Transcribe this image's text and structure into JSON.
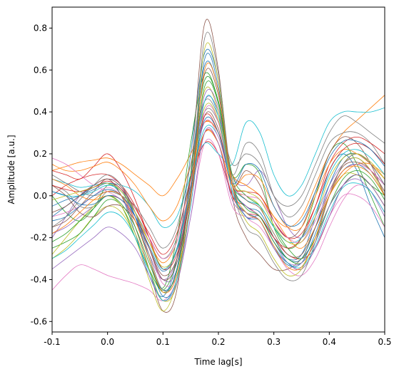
{
  "chart_data": {
    "type": "line",
    "xlabel": "Time lag[s]",
    "ylabel": "Amplitude [a.u.]",
    "xlim": [
      -0.1,
      0.5
    ],
    "ylim": [
      -0.65,
      0.9
    ],
    "x_ticks": [
      -0.1,
      0.0,
      0.1,
      0.2,
      0.3,
      0.4,
      0.5
    ],
    "x_tick_labels": [
      "-0.1",
      "0.0",
      "0.1",
      "0.2",
      "0.3",
      "0.4",
      "0.5"
    ],
    "y_ticks": [
      -0.6,
      -0.4,
      -0.2,
      0.0,
      0.2,
      0.4,
      0.6,
      0.8
    ],
    "y_tick_labels": [
      "-0.6",
      "-0.4",
      "-0.2",
      "0.0",
      "0.2",
      "0.4",
      "0.6",
      "0.8"
    ],
    "grid": false,
    "legend": "none",
    "palette": [
      "#1f77b4",
      "#ff7f0e",
      "#2ca02c",
      "#d62728",
      "#9467bd",
      "#8c564b",
      "#e377c2",
      "#7f7f7f",
      "#bcbd22",
      "#17becf"
    ],
    "approx_series_count": 100,
    "x": [
      -0.1,
      -0.075,
      -0.05,
      -0.025,
      0.0,
      0.025,
      0.05,
      0.075,
      0.1,
      0.125,
      0.15,
      0.175,
      0.2,
      0.225,
      0.25,
      0.275,
      0.3,
      0.325,
      0.35,
      0.375,
      0.4,
      0.425,
      0.45,
      0.475,
      0.5
    ],
    "series": [
      {
        "values": [
          -0.1,
          -0.05,
          0.0,
          0.04,
          0.06,
          0.0,
          -0.18,
          -0.38,
          -0.48,
          -0.3,
          0.2,
          0.68,
          0.55,
          0.05,
          -0.1,
          -0.1,
          -0.22,
          -0.3,
          -0.28,
          -0.1,
          0.12,
          0.2,
          0.12,
          -0.05,
          -0.2
        ]
      },
      {
        "values": [
          0.12,
          0.14,
          0.16,
          0.17,
          0.18,
          0.15,
          0.1,
          0.05,
          0.0,
          0.08,
          0.2,
          0.35,
          0.3,
          0.1,
          0.05,
          0.0,
          -0.1,
          -0.15,
          -0.1,
          0.05,
          0.2,
          0.3,
          0.36,
          0.42,
          0.48
        ]
      },
      {
        "values": [
          0.0,
          -0.08,
          -0.12,
          -0.06,
          0.05,
          0.02,
          -0.1,
          -0.3,
          -0.44,
          -0.2,
          0.25,
          0.58,
          0.45,
          0.1,
          0.15,
          0.1,
          -0.15,
          -0.25,
          -0.2,
          0.0,
          0.2,
          0.25,
          0.15,
          0.0,
          -0.15
        ]
      },
      {
        "values": [
          0.12,
          0.1,
          0.08,
          0.14,
          0.2,
          0.12,
          -0.02,
          -0.2,
          -0.35,
          -0.25,
          0.05,
          0.25,
          0.2,
          0.0,
          -0.05,
          -0.1,
          -0.2,
          -0.28,
          -0.3,
          -0.25,
          -0.1,
          0.05,
          0.1,
          0.05,
          -0.05
        ]
      },
      {
        "values": [
          -0.2,
          -0.1,
          0.0,
          0.05,
          0.08,
          0.05,
          -0.1,
          -0.25,
          -0.4,
          -0.35,
          0.05,
          0.45,
          0.4,
          0.1,
          0.05,
          0.12,
          0.0,
          -0.15,
          -0.2,
          -0.1,
          0.05,
          0.15,
          0.18,
          0.12,
          0.05
        ]
      },
      {
        "values": [
          -0.15,
          -0.12,
          -0.05,
          0.02,
          0.08,
          0.0,
          -0.15,
          -0.35,
          -0.55,
          -0.45,
          0.1,
          0.82,
          0.6,
          0.0,
          -0.2,
          -0.28,
          -0.35,
          -0.35,
          -0.3,
          -0.2,
          0.0,
          0.15,
          0.2,
          0.15,
          0.05
        ]
      },
      {
        "values": [
          -0.45,
          -0.38,
          -0.33,
          -0.35,
          -0.38,
          -0.4,
          -0.42,
          -0.45,
          -0.5,
          -0.4,
          -0.1,
          0.25,
          0.2,
          -0.05,
          -0.1,
          -0.12,
          -0.25,
          -0.32,
          -0.35,
          -0.25,
          -0.1,
          0.0,
          0.0,
          -0.05,
          -0.15
        ]
      },
      {
        "values": [
          0.05,
          0.02,
          -0.05,
          -0.05,
          0.02,
          0.0,
          -0.08,
          -0.2,
          -0.3,
          -0.2,
          0.1,
          0.4,
          0.35,
          0.1,
          0.25,
          0.2,
          0.0,
          -0.1,
          -0.05,
          0.1,
          0.25,
          0.3,
          0.3,
          0.25,
          0.15
        ]
      },
      {
        "values": [
          -0.3,
          -0.25,
          -0.18,
          -0.1,
          -0.05,
          -0.08,
          -0.2,
          -0.4,
          -0.55,
          -0.4,
          0.05,
          0.5,
          0.4,
          0.05,
          0.0,
          -0.05,
          -0.2,
          -0.3,
          -0.3,
          -0.15,
          0.0,
          0.1,
          0.1,
          0.05,
          -0.05
        ]
      },
      {
        "values": [
          0.08,
          0.06,
          0.04,
          0.05,
          0.06,
          0.05,
          0.02,
          -0.05,
          -0.15,
          -0.1,
          0.1,
          0.25,
          0.2,
          0.15,
          0.35,
          0.3,
          0.1,
          0.0,
          0.05,
          0.2,
          0.35,
          0.4,
          0.4,
          0.4,
          0.42
        ]
      },
      {
        "values": [
          -0.05,
          -0.02,
          0.0,
          0.03,
          0.06,
          0.03,
          -0.1,
          -0.3,
          -0.45,
          -0.35,
          0.1,
          0.62,
          0.5,
          0.05,
          -0.05,
          -0.08,
          -0.2,
          -0.3,
          -0.3,
          -0.15,
          0.05,
          0.18,
          0.2,
          0.15,
          0.05
        ]
      },
      {
        "values": [
          0.15,
          0.12,
          0.12,
          0.14,
          0.16,
          0.12,
          0.05,
          -0.05,
          -0.12,
          -0.05,
          0.15,
          0.35,
          0.3,
          0.1,
          0.05,
          0.0,
          -0.1,
          -0.2,
          -0.25,
          -0.15,
          0.0,
          0.1,
          0.15,
          0.15,
          0.1
        ]
      },
      {
        "values": [
          -0.25,
          -0.22,
          -0.18,
          -0.1,
          -0.02,
          -0.05,
          -0.2,
          -0.35,
          -0.45,
          -0.3,
          0.1,
          0.55,
          0.45,
          0.1,
          0.0,
          -0.05,
          -0.15,
          -0.25,
          -0.3,
          -0.2,
          -0.05,
          0.05,
          0.1,
          0.05,
          0.0
        ]
      },
      {
        "values": [
          0.0,
          0.05,
          0.08,
          0.1,
          0.1,
          0.05,
          -0.05,
          -0.2,
          -0.35,
          -0.28,
          0.0,
          0.3,
          0.25,
          0.0,
          -0.08,
          -0.1,
          -0.2,
          -0.25,
          -0.2,
          -0.05,
          0.15,
          0.25,
          0.28,
          0.25,
          0.2
        ]
      },
      {
        "values": [
          -0.18,
          -0.15,
          -0.1,
          -0.05,
          0.0,
          -0.02,
          -0.12,
          -0.28,
          -0.4,
          -0.3,
          0.05,
          0.48,
          0.42,
          0.05,
          -0.05,
          -0.1,
          -0.22,
          -0.32,
          -0.35,
          -0.25,
          -0.1,
          0.05,
          0.1,
          0.05,
          -0.05
        ]
      },
      {
        "values": [
          0.05,
          0.0,
          -0.08,
          -0.1,
          -0.05,
          -0.05,
          -0.12,
          -0.25,
          -0.38,
          -0.3,
          0.0,
          0.38,
          0.32,
          0.05,
          0.12,
          0.05,
          -0.12,
          -0.2,
          -0.15,
          0.02,
          0.2,
          0.28,
          0.25,
          0.15,
          0.0
        ]
      },
      {
        "values": [
          -0.1,
          -0.08,
          -0.05,
          0.0,
          0.04,
          0.0,
          -0.1,
          -0.25,
          -0.42,
          -0.38,
          -0.05,
          0.4,
          0.35,
          0.02,
          -0.1,
          -0.15,
          -0.25,
          -0.35,
          -0.38,
          -0.3,
          -0.15,
          -0.02,
          0.05,
          0.02,
          -0.08
        ]
      },
      {
        "values": [
          0.1,
          0.06,
          0.02,
          0.0,
          0.02,
          0.0,
          -0.05,
          -0.15,
          -0.25,
          -0.15,
          0.15,
          0.45,
          0.38,
          0.15,
          0.2,
          0.15,
          0.0,
          -0.05,
          0.0,
          0.15,
          0.3,
          0.38,
          0.35,
          0.3,
          0.25
        ]
      },
      {
        "values": [
          -0.28,
          -0.2,
          -0.12,
          -0.05,
          0.0,
          -0.05,
          -0.18,
          -0.35,
          -0.5,
          -0.42,
          0.0,
          0.7,
          0.55,
          0.05,
          -0.12,
          -0.18,
          -0.3,
          -0.38,
          -0.35,
          -0.2,
          0.0,
          0.15,
          0.18,
          0.12,
          0.0
        ]
      },
      {
        "values": [
          0.02,
          0.0,
          0.0,
          0.02,
          0.05,
          0.02,
          -0.08,
          -0.22,
          -0.35,
          -0.25,
          0.05,
          0.32,
          0.28,
          0.05,
          -0.02,
          -0.05,
          -0.15,
          -0.22,
          -0.2,
          -0.08,
          0.1,
          0.2,
          0.22,
          0.18,
          0.1
        ]
      },
      {
        "values": [
          -0.12,
          -0.1,
          -0.05,
          0.0,
          0.03,
          0.0,
          -0.1,
          -0.3,
          -0.48,
          -0.4,
          0.0,
          0.65,
          0.52,
          0.05,
          -0.1,
          -0.12,
          -0.25,
          -0.33,
          -0.32,
          -0.18,
          0.0,
          0.12,
          0.15,
          0.1,
          0.0
        ]
      },
      {
        "values": [
          0.08,
          0.05,
          0.0,
          -0.02,
          0.0,
          -0.02,
          -0.1,
          -0.22,
          -0.32,
          -0.22,
          0.05,
          0.3,
          0.25,
          0.05,
          0.1,
          0.08,
          -0.05,
          -0.15,
          -0.15,
          0.0,
          0.15,
          0.22,
          0.2,
          0.15,
          0.08
        ]
      },
      {
        "values": [
          -0.22,
          -0.18,
          -0.12,
          -0.06,
          0.0,
          -0.04,
          -0.15,
          -0.32,
          -0.46,
          -0.36,
          0.02,
          0.52,
          0.44,
          0.06,
          -0.06,
          -0.1,
          -0.22,
          -0.3,
          -0.32,
          -0.22,
          -0.05,
          0.08,
          0.12,
          0.08,
          -0.02
        ]
      },
      {
        "values": [
          0.05,
          0.03,
          0.02,
          0.04,
          0.07,
          0.03,
          -0.06,
          -0.18,
          -0.28,
          -0.18,
          0.08,
          0.38,
          0.3,
          0.05,
          0.02,
          0.0,
          -0.12,
          -0.2,
          -0.18,
          -0.05,
          0.12,
          0.22,
          0.25,
          0.22,
          0.15
        ]
      },
      {
        "values": [
          -0.35,
          -0.3,
          -0.25,
          -0.2,
          -0.15,
          -0.18,
          -0.25,
          -0.38,
          -0.5,
          -0.42,
          -0.1,
          0.3,
          0.25,
          -0.02,
          -0.08,
          -0.12,
          -0.25,
          -0.32,
          -0.32,
          -0.22,
          -0.05,
          0.05,
          0.08,
          0.02,
          -0.1
        ]
      },
      {
        "values": [
          -0.08,
          -0.05,
          0.0,
          0.05,
          0.08,
          0.04,
          -0.08,
          -0.25,
          -0.4,
          -0.32,
          0.02,
          0.58,
          0.48,
          0.08,
          -0.02,
          -0.06,
          -0.18,
          -0.28,
          -0.28,
          -0.15,
          0.02,
          0.14,
          0.16,
          0.12,
          0.02
        ]
      },
      {
        "values": [
          0.18,
          0.15,
          0.1,
          0.05,
          0.02,
          -0.02,
          -0.1,
          -0.2,
          -0.3,
          -0.22,
          0.05,
          0.35,
          0.28,
          0.05,
          0.0,
          -0.02,
          -0.12,
          -0.2,
          -0.22,
          -0.12,
          0.02,
          0.12,
          0.15,
          0.12,
          0.05
        ]
      },
      {
        "values": [
          -0.15,
          -0.1,
          -0.02,
          0.05,
          0.1,
          0.05,
          -0.08,
          -0.28,
          -0.45,
          -0.38,
          0.0,
          0.75,
          0.58,
          0.05,
          -0.15,
          -0.2,
          -0.32,
          -0.4,
          -0.38,
          -0.22,
          0.0,
          0.15,
          0.2,
          0.15,
          0.05
        ]
      },
      {
        "values": [
          -0.02,
          0.0,
          0.02,
          0.04,
          0.06,
          0.02,
          -0.08,
          -0.22,
          -0.34,
          -0.26,
          0.04,
          0.42,
          0.36,
          0.06,
          0.02,
          -0.02,
          -0.14,
          -0.22,
          -0.22,
          -0.1,
          0.08,
          0.18,
          0.2,
          0.16,
          0.08
        ]
      },
      {
        "values": [
          -0.3,
          -0.26,
          -0.2,
          -0.14,
          -0.08,
          -0.1,
          -0.2,
          -0.36,
          -0.5,
          -0.4,
          -0.05,
          0.45,
          0.38,
          0.02,
          -0.08,
          -0.12,
          -0.24,
          -0.32,
          -0.34,
          -0.24,
          -0.08,
          0.04,
          0.06,
          0.02,
          -0.08
        ]
      },
      {
        "values": [
          0.02,
          0.0,
          -0.04,
          -0.04,
          0.0,
          -0.02,
          -0.1,
          -0.24,
          -0.36,
          -0.26,
          0.04,
          0.36,
          0.3,
          0.06,
          0.15,
          0.12,
          -0.05,
          -0.14,
          -0.12,
          0.02,
          0.18,
          0.26,
          0.26,
          0.22,
          0.14
        ]
      },
      {
        "values": [
          -0.18,
          -0.14,
          -0.08,
          -0.02,
          0.02,
          0.0,
          -0.12,
          -0.3,
          -0.46,
          -0.38,
          -0.02,
          0.6,
          0.5,
          0.05,
          -0.08,
          -0.12,
          -0.24,
          -0.34,
          -0.34,
          -0.2,
          0.0,
          0.12,
          0.14,
          0.1,
          0.0
        ]
      }
    ]
  }
}
